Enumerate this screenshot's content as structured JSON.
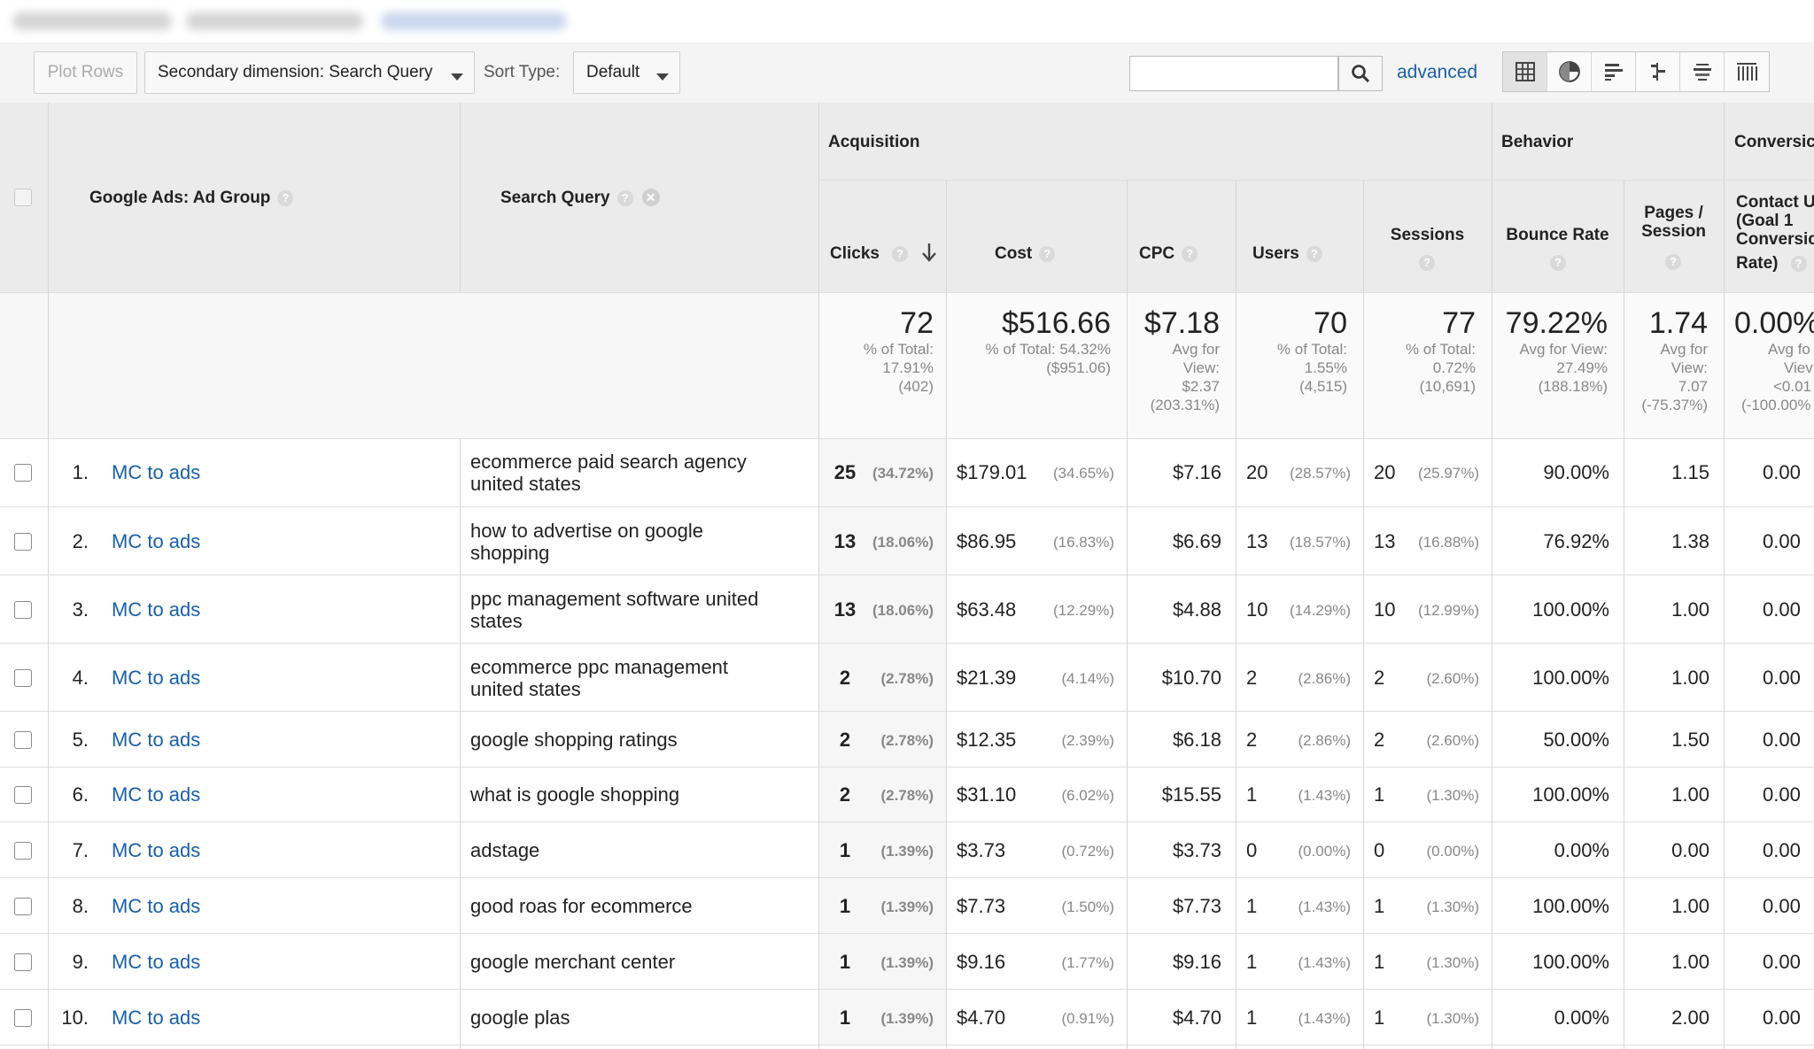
{
  "toolbar": {
    "plot_rows": "Plot Rows",
    "secondary_dimension": "Secondary dimension: Search Query",
    "sort_type_label": "Sort Type:",
    "sort_type_value": "Default",
    "search_placeholder": "",
    "advanced": "advanced"
  },
  "table": {
    "headers": {
      "ad_group": "Google Ads: Ad Group",
      "search_query": "Search Query",
      "acquisition": "Acquisition",
      "behavior": "Behavior",
      "conversions": "Conversic",
      "clicks": "Clicks",
      "cost": "Cost",
      "cpc": "CPC",
      "users": "Users",
      "sessions": "Sessions",
      "bounce_rate": "Bounce Rate",
      "pages_session": [
        "Pages /",
        "Session"
      ],
      "contact": [
        "Contact U",
        "(Goal 1",
        "Conversic",
        "Rate)"
      ]
    },
    "totals": {
      "clicks": {
        "value": "72",
        "lines": [
          "% of Total:",
          "17.91%",
          "(402)"
        ]
      },
      "cost": {
        "value": "$516.66",
        "lines": [
          "% of Total: 54.32%",
          "($951.06)"
        ]
      },
      "cpc": {
        "value": "$7.18",
        "lines": [
          "Avg for",
          "View:",
          "$2.37",
          "(203.31%)"
        ]
      },
      "users": {
        "value": "70",
        "lines": [
          "% of Total:",
          "1.55%",
          "(4,515)"
        ]
      },
      "sessions": {
        "value": "77",
        "lines": [
          "% of Total:",
          "0.72%",
          "(10,691)"
        ]
      },
      "bounce": {
        "value": "79.22%",
        "lines": [
          "Avg for View:",
          "27.49%",
          "(188.18%)"
        ]
      },
      "pages": {
        "value": "1.74",
        "lines": [
          "Avg for",
          "View:",
          "7.07",
          "(-75.37%)"
        ]
      },
      "conv": {
        "value": "0.00%",
        "lines": [
          "Avg fo",
          "Viev",
          "<0.01",
          "(-100.00%"
        ]
      }
    },
    "rows": [
      {
        "idx": "1.",
        "group": "MC to ads",
        "query": [
          "ecommerce paid search agency",
          "united states"
        ],
        "clicks": "25",
        "clicks_pct": "(34.72%)",
        "cost": "$179.01",
        "cost_pct": "(34.65%)",
        "cpc": "$7.16",
        "users": "20",
        "users_pct": "(28.57%)",
        "sessions": "20",
        "sessions_pct": "(25.97%)",
        "bounce": "90.00%",
        "pages": "1.15",
        "conv": "0.00"
      },
      {
        "idx": "2.",
        "group": "MC to ads",
        "query": [
          "how to advertise on google",
          "shopping"
        ],
        "clicks": "13",
        "clicks_pct": "(18.06%)",
        "cost": "$86.95",
        "cost_pct": "(16.83%)",
        "cpc": "$6.69",
        "users": "13",
        "users_pct": "(18.57%)",
        "sessions": "13",
        "sessions_pct": "(16.88%)",
        "bounce": "76.92%",
        "pages": "1.38",
        "conv": "0.00"
      },
      {
        "idx": "3.",
        "group": "MC to ads",
        "query": [
          "ppc management software united",
          "states"
        ],
        "clicks": "13",
        "clicks_pct": "(18.06%)",
        "cost": "$63.48",
        "cost_pct": "(12.29%)",
        "cpc": "$4.88",
        "users": "10",
        "users_pct": "(14.29%)",
        "sessions": "10",
        "sessions_pct": "(12.99%)",
        "bounce": "100.00%",
        "pages": "1.00",
        "conv": "0.00"
      },
      {
        "idx": "4.",
        "group": "MC to ads",
        "query": [
          "ecommerce ppc management",
          "united states"
        ],
        "clicks": "2",
        "clicks_pct": "(2.78%)",
        "cost": "$21.39",
        "cost_pct": "(4.14%)",
        "cpc": "$10.70",
        "users": "2",
        "users_pct": "(2.86%)",
        "sessions": "2",
        "sessions_pct": "(2.60%)",
        "bounce": "100.00%",
        "pages": "1.00",
        "conv": "0.00"
      },
      {
        "idx": "5.",
        "group": "MC to ads",
        "query": [
          "google shopping ratings"
        ],
        "clicks": "2",
        "clicks_pct": "(2.78%)",
        "cost": "$12.35",
        "cost_pct": "(2.39%)",
        "cpc": "$6.18",
        "users": "2",
        "users_pct": "(2.86%)",
        "sessions": "2",
        "sessions_pct": "(2.60%)",
        "bounce": "50.00%",
        "pages": "1.50",
        "conv": "0.00"
      },
      {
        "idx": "6.",
        "group": "MC to ads",
        "query": [
          "what is google shopping"
        ],
        "clicks": "2",
        "clicks_pct": "(2.78%)",
        "cost": "$31.10",
        "cost_pct": "(6.02%)",
        "cpc": "$15.55",
        "users": "1",
        "users_pct": "(1.43%)",
        "sessions": "1",
        "sessions_pct": "(1.30%)",
        "bounce": "100.00%",
        "pages": "1.00",
        "conv": "0.00"
      },
      {
        "idx": "7.",
        "group": "MC to ads",
        "query": [
          "adstage"
        ],
        "clicks": "1",
        "clicks_pct": "(1.39%)",
        "cost": "$3.73",
        "cost_pct": "(0.72%)",
        "cpc": "$3.73",
        "users": "0",
        "users_pct": "(0.00%)",
        "sessions": "0",
        "sessions_pct": "(0.00%)",
        "bounce": "0.00%",
        "pages": "0.00",
        "conv": "0.00"
      },
      {
        "idx": "8.",
        "group": "MC to ads",
        "query": [
          "good roas for ecommerce"
        ],
        "clicks": "1",
        "clicks_pct": "(1.39%)",
        "cost": "$7.73",
        "cost_pct": "(1.50%)",
        "cpc": "$7.73",
        "users": "1",
        "users_pct": "(1.43%)",
        "sessions": "1",
        "sessions_pct": "(1.30%)",
        "bounce": "100.00%",
        "pages": "1.00",
        "conv": "0.00"
      },
      {
        "idx": "9.",
        "group": "MC to ads",
        "query": [
          "google merchant center"
        ],
        "clicks": "1",
        "clicks_pct": "(1.39%)",
        "cost": "$9.16",
        "cost_pct": "(1.77%)",
        "cpc": "$9.16",
        "users": "1",
        "users_pct": "(1.43%)",
        "sessions": "1",
        "sessions_pct": "(1.30%)",
        "bounce": "100.00%",
        "pages": "1.00",
        "conv": "0.00"
      },
      {
        "idx": "10.",
        "group": "MC to ads",
        "query": [
          "google plas"
        ],
        "clicks": "1",
        "clicks_pct": "(1.39%)",
        "cost": "$4.70",
        "cost_pct": "(0.91%)",
        "cpc": "$4.70",
        "users": "1",
        "users_pct": "(1.43%)",
        "sessions": "1",
        "sessions_pct": "(1.30%)",
        "bounce": "0.00%",
        "pages": "2.00",
        "conv": "0.00"
      }
    ]
  }
}
